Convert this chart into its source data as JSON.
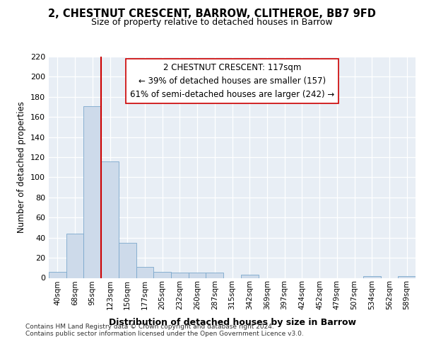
{
  "title_line1": "2, CHESTNUT CRESCENT, BARROW, CLITHEROE, BB7 9FD",
  "title_line2": "Size of property relative to detached houses in Barrow",
  "xlabel": "Distribution of detached houses by size in Barrow",
  "ylabel": "Number of detached properties",
  "categories": [
    "40sqm",
    "68sqm",
    "95sqm",
    "123sqm",
    "150sqm",
    "177sqm",
    "205sqm",
    "232sqm",
    "260sqm",
    "287sqm",
    "315sqm",
    "342sqm",
    "369sqm",
    "397sqm",
    "424sqm",
    "452sqm",
    "479sqm",
    "507sqm",
    "534sqm",
    "562sqm",
    "589sqm"
  ],
  "values": [
    6,
    44,
    171,
    116,
    35,
    11,
    6,
    5,
    5,
    5,
    0,
    3,
    0,
    0,
    0,
    0,
    0,
    0,
    2,
    0,
    2
  ],
  "bar_color": "#cddaea",
  "bar_edge_color": "#7ba8cc",
  "vline_color": "#cc0000",
  "annotation_line1": "2 CHESTNUT CRESCENT: 117sqm",
  "annotation_line2": "← 39% of detached houses are smaller (157)",
  "annotation_line3": "61% of semi-detached houses are larger (242) →",
  "annotation_box_color": "#ffffff",
  "background_color": "#e8eef5",
  "footer_line1": "Contains HM Land Registry data © Crown copyright and database right 2024.",
  "footer_line2": "Contains public sector information licensed under the Open Government Licence v3.0.",
  "ylim_max": 220,
  "yticks": [
    0,
    20,
    40,
    60,
    80,
    100,
    120,
    140,
    160,
    180,
    200,
    220
  ],
  "vline_index": 3
}
